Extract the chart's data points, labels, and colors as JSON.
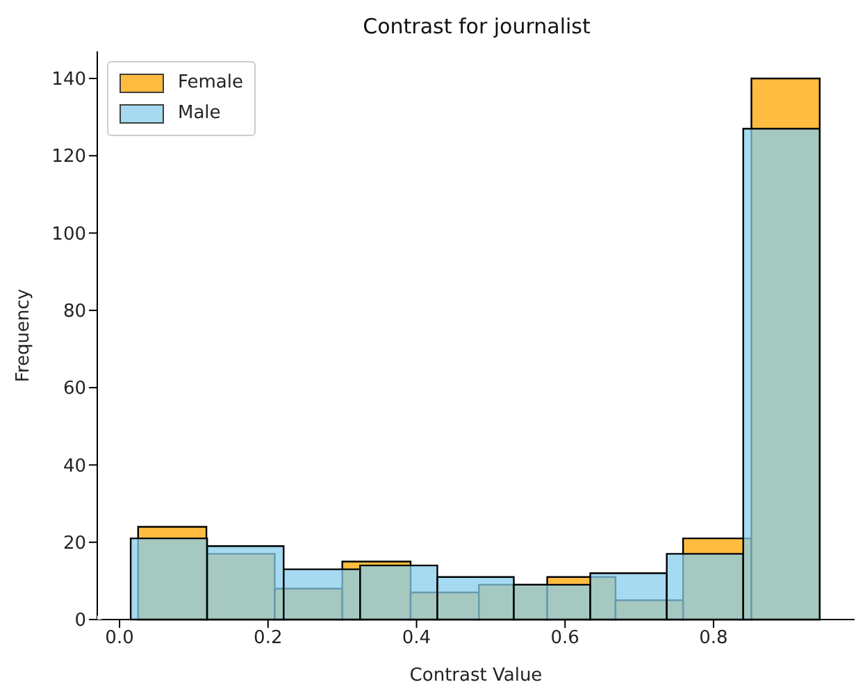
{
  "chart_data": {
    "type": "histogram",
    "title": "Contrast for journalist",
    "xlabel": "Contrast Value",
    "ylabel": "Frequency",
    "series": [
      {
        "name": "Female",
        "color": "#ffa500",
        "values": [
          24,
          17,
          8,
          15,
          7,
          9,
          11,
          5,
          21,
          140
        ]
      },
      {
        "name": "Male",
        "color": "#87ceeb",
        "bins": [
          0.015,
          0.118,
          0.221,
          0.324,
          0.428,
          0.531,
          0.634,
          0.737,
          0.84,
          0.943
        ],
        "values": [
          21,
          19,
          13,
          14,
          11,
          9,
          12,
          17,
          127
        ]
      }
    ],
    "bins": [
      0.025,
      0.117,
      0.209,
      0.3,
      0.392,
      0.484,
      0.576,
      0.668,
      0.759,
      0.851,
      0.943
    ],
    "xlim": [
      -0.03,
      0.99
    ],
    "xticks": [
      {
        "value": 0,
        "label": "0.0"
      },
      0.2,
      0.4,
      0.6,
      0.8
    ],
    "ylim": [
      0,
      147
    ],
    "yticks": [
      0,
      20,
      40,
      60,
      80,
      100,
      120,
      140
    ],
    "legend": "top left",
    "grid": false
  }
}
